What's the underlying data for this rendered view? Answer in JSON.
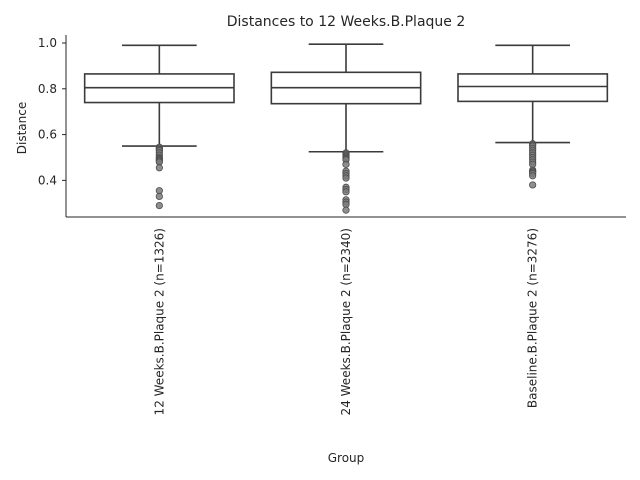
{
  "chart_data": {
    "type": "box",
    "title": "Distances to 12 Weeks.B.Plaque 2",
    "xlabel": "Group",
    "ylabel": "Distance",
    "ylim": [
      0.24,
      1.035
    ],
    "yticks": [
      "0.4",
      "0.6",
      "0.8",
      "1.0"
    ],
    "grid": false,
    "categories": [
      "12 Weeks.B.Plaque 2 (n=1326)",
      "24 Weeks.B.Plaque 2 (n=2340)",
      "Baseline.B.Plaque 2 (n=3276)"
    ],
    "boxes": [
      {
        "whisker_low": 0.55,
        "q1": 0.74,
        "median": 0.805,
        "q3": 0.865,
        "whisker_high": 0.99,
        "outliers": [
          0.545,
          0.54,
          0.535,
          0.53,
          0.52,
          0.51,
          0.5,
          0.495,
          0.49,
          0.485,
          0.48,
          0.455,
          0.355,
          0.33,
          0.29
        ]
      },
      {
        "whisker_low": 0.525,
        "q1": 0.735,
        "median": 0.805,
        "q3": 0.872,
        "whisker_high": 0.995,
        "outliers": [
          0.52,
          0.515,
          0.51,
          0.505,
          0.5,
          0.495,
          0.49,
          0.47,
          0.44,
          0.43,
          0.42,
          0.41,
          0.37,
          0.36,
          0.35,
          0.315,
          0.305,
          0.295,
          0.27
        ]
      },
      {
        "whisker_low": 0.565,
        "q1": 0.745,
        "median": 0.81,
        "q3": 0.865,
        "whisker_high": 0.99,
        "outliers": [
          0.56,
          0.555,
          0.55,
          0.54,
          0.53,
          0.52,
          0.51,
          0.5,
          0.49,
          0.48,
          0.47,
          0.445,
          0.44,
          0.435,
          0.43,
          0.42,
          0.38
        ]
      }
    ]
  }
}
